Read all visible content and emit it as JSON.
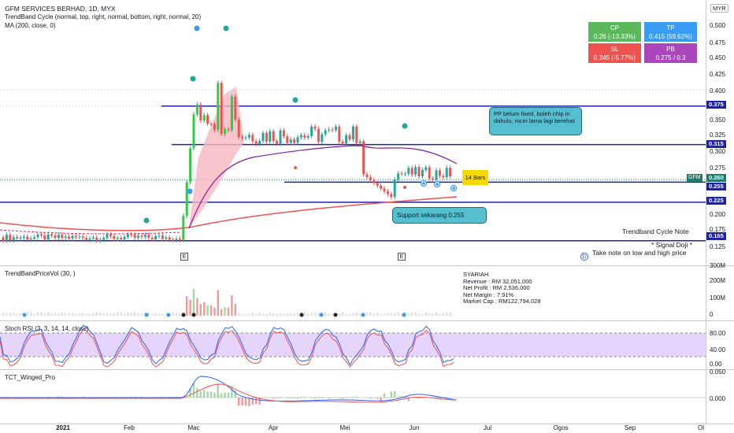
{
  "header": {
    "symbol_line": "GFM SERVICES BERHAD, 1D, MYX",
    "indicator1": "TrendBand Cycle (normal, top, right, normal, bottom, right, normal, 20)",
    "indicator2": "MA (200, close, 0)",
    "currency": "MYR"
  },
  "stat_boxes": {
    "cp": {
      "title": "CP",
      "value": "0.26 (-13.33%)",
      "color": "#5cb85c"
    },
    "tp": {
      "title": "TP",
      "value": "0.415 (59.62%)",
      "color": "#3b9bf0"
    },
    "sl": {
      "title": "SL",
      "value": "0.245 (-5.77%)",
      "color": "#ef5350"
    },
    "pb": {
      "title": "PB",
      "value": "0.275 / 0.3",
      "color": "#ab47bc"
    }
  },
  "price_axis": {
    "ticks": [
      "0.500",
      "0.475",
      "0.450",
      "0.425",
      "0.400",
      "0.375",
      "0.350",
      "0.325",
      "0.300",
      "0.275",
      "0.250",
      "0.225",
      "0.200",
      "0.175",
      "0.150",
      "0.125"
    ],
    "levels": [
      {
        "label": "0.375"
      },
      {
        "label": "0.315"
      },
      {
        "label": "0.255"
      },
      {
        "label": "0.225"
      },
      {
        "label": "0.165"
      }
    ],
    "current_symbol": "GFM",
    "current_price": "0.260"
  },
  "annotations": {
    "note1": "PP belum fixed, boleh chip in dahulu, mcm lama lagi berehat",
    "support": "Support sekarang 0.255",
    "bars_tag": "14 Bars",
    "trendband_note": "Trendband Cycle Note",
    "signal_doji": "* Signal Doji *",
    "take_note": "Take note on low and high price"
  },
  "event_markers": [
    "E",
    "E",
    "D"
  ],
  "volume_pane": {
    "title": "TrendBandPriceVol (30, )",
    "ticks": [
      "300M",
      "200M",
      "100M",
      "0"
    ],
    "fundamentals": [
      "SYARIAH",
      "Revenue : RM 32,051,000",
      "Net Profit : RM 2,536,000",
      "Net Margin : 7.91%",
      "Market Cap : RM122,794,028"
    ]
  },
  "stoch_pane": {
    "title": "Stoch RSI (3, 3, 14, 14, close)",
    "ticks": [
      "80.00",
      "40.00",
      "0.00"
    ],
    "band_color": "#e5d4fb"
  },
  "tct_pane": {
    "title": "TCT_Winged_Pro",
    "ticks": [
      "0.050",
      "0.000"
    ]
  },
  "time_axis": {
    "labels": [
      "2021",
      "Feb",
      "Mac",
      "Apr",
      "Mei",
      "Jun",
      "Jul",
      "Ogos",
      "Sep",
      "Ol"
    ]
  }
}
